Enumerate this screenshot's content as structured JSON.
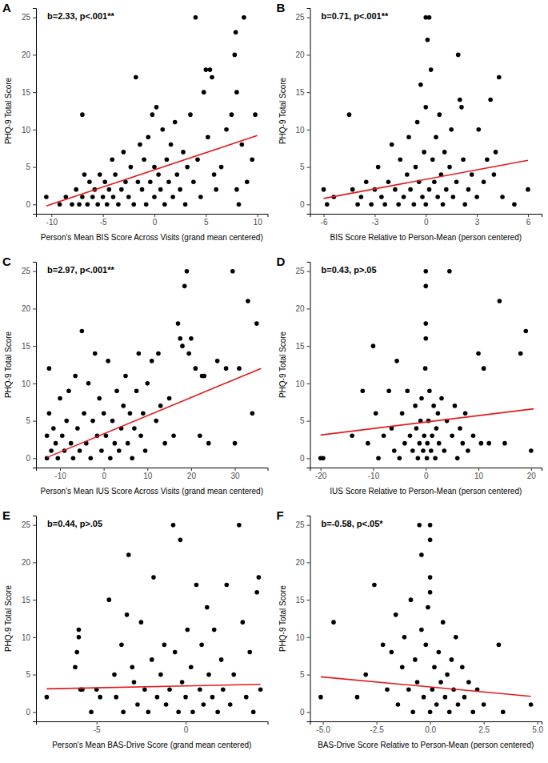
{
  "chart_data": [
    {
      "type": "scatter",
      "title": "A",
      "annotation": "b=2.33, p<.001**",
      "x_label": "Person's Mean BIS Score Across Visits (grand mean centered)",
      "y_label": "PHQ-9 Total Score",
      "xlim": [
        -11.5,
        11
      ],
      "ylim": [
        -1.25,
        26.25
      ],
      "xticks": [
        -10,
        -5,
        0,
        5,
        10
      ],
      "yticks": [
        0,
        5,
        10,
        15,
        20,
        25
      ],
      "series": [
        {
          "type": "scatter",
          "color": "#000000",
          "marker": "circle",
          "x": [
            -10.5,
            -9.2,
            -8.6,
            -8,
            -7.6,
            -7.3,
            -7,
            -7,
            -6.8,
            -6.5,
            -6.3,
            -6,
            -5.8,
            -5.5,
            -5.3,
            -5,
            -4.8,
            -4.6,
            -4.4,
            -4.1,
            -4,
            -3.8,
            -3.5,
            -3.2,
            -3,
            -2.8,
            -2.5,
            -2.3,
            -2,
            -1.8,
            -1.6,
            -1.4,
            -1.2,
            -1,
            -0.8,
            -0.6,
            -0.4,
            -0.2,
            0,
            0,
            0.2,
            0.4,
            0.6,
            0.8,
            1,
            1.2,
            1.4,
            1.6,
            1.8,
            2,
            2.2,
            2.5,
            2.8,
            3,
            3.2,
            3.5,
            3.8,
            4,
            4.2,
            4.5,
            4.8,
            5,
            5.2,
            5.4,
            5.6,
            5.8,
            6,
            6.5,
            7,
            7.5,
            7.8,
            7.9,
            8,
            8,
            8.2,
            8.5,
            8.7,
            9,
            9.5,
            9.8
          ],
          "values": [
            1,
            0,
            1,
            0,
            2,
            0,
            12,
            1,
            4,
            0,
            3,
            1,
            2,
            0,
            4,
            1,
            3,
            0,
            2,
            6,
            1,
            4,
            0,
            2,
            7,
            3,
            1,
            5,
            0,
            17,
            3,
            8,
            2,
            6,
            0,
            9,
            3,
            12,
            5,
            1,
            13,
            4,
            2,
            10,
            0,
            6,
            3,
            8,
            1,
            11,
            4,
            2,
            7,
            0,
            5,
            12,
            3,
            25,
            6,
            1,
            15,
            18,
            9,
            18,
            17,
            4,
            2,
            5,
            10,
            12,
            20,
            23,
            15,
            2,
            0,
            8,
            25,
            3,
            6,
            12
          ]
        },
        {
          "type": "line",
          "color": "#e41a1c",
          "x": [
            -10.5,
            10
          ],
          "values": [
            -0.2,
            9.2
          ]
        }
      ]
    },
    {
      "type": "scatter",
      "title": "B",
      "annotation": "b=0.71, p<.001**",
      "x_label": "BIS Score Relative to Person-Mean (person centered)",
      "y_label": "PHQ-9 Total Score",
      "xlim": [
        -6.8,
        6.8
      ],
      "ylim": [
        -1.25,
        26.25
      ],
      "xticks": [
        -6,
        -3,
        0,
        3,
        6
      ],
      "yticks": [
        0,
        5,
        10,
        15,
        20,
        25
      ],
      "series": [
        {
          "type": "scatter",
          "color": "#000000",
          "marker": "circle",
          "x": [
            -6,
            -5.8,
            -5.4,
            -4.5,
            -4.3,
            -4,
            -3.8,
            -3.5,
            -3.2,
            -3,
            -2.8,
            -2.6,
            -2.4,
            -2.2,
            -2,
            -1.8,
            -1.6,
            -1.5,
            -1.3,
            -1.1,
            -1,
            -0.9,
            -0.7,
            -0.6,
            -0.5,
            -0.4,
            -0.3,
            -0.2,
            -0.1,
            0,
            0,
            0,
            0.1,
            0.2,
            0.2,
            0.3,
            0.4,
            0.5,
            0.6,
            0.7,
            0.8,
            0.9,
            1,
            1.1,
            1.2,
            1.4,
            1.5,
            1.6,
            1.8,
            1.9,
            2,
            2.1,
            2.2,
            2.3,
            2.5,
            2.7,
            3,
            3.1,
            3.4,
            3.6,
            3.8,
            4,
            4.1,
            4.3,
            4.5,
            5.2,
            6
          ],
          "values": [
            2,
            0,
            1,
            12,
            2,
            0,
            1,
            3,
            0,
            2,
            5,
            1,
            0,
            3,
            8,
            2,
            0,
            6,
            1,
            4,
            9,
            2,
            0,
            5,
            11,
            3,
            16,
            1,
            7,
            0,
            13,
            25,
            22,
            25,
            2,
            18,
            6,
            3,
            9,
            1,
            12,
            4,
            0,
            7,
            2,
            5,
            10,
            1,
            3,
            20,
            14,
            13,
            6,
            0,
            2,
            4,
            1,
            10,
            3,
            6,
            14,
            4,
            7,
            17,
            1,
            0,
            2
          ]
        },
        {
          "type": "line",
          "color": "#e41a1c",
          "x": [
            -6,
            6
          ],
          "values": [
            0.8,
            5.9
          ]
        }
      ]
    },
    {
      "type": "scatter",
      "title": "C",
      "annotation": "b=2.97, p<.001**",
      "x_label": "Person's Mean IUS Score Across Visits (grand mean centered)",
      "y_label": "PHQ-9 Total Score",
      "xlim": [
        -15.5,
        37.5
      ],
      "ylim": [
        -1.25,
        26.25
      ],
      "xticks": [
        -10,
        0,
        10,
        20,
        30
      ],
      "yticks": [
        0,
        5,
        10,
        15,
        20,
        25
      ],
      "series": [
        {
          "type": "scatter",
          "color": "#000000",
          "marker": "circle",
          "x": [
            -13,
            -13,
            -12.5,
            -12.5,
            -12,
            -11.5,
            -11,
            -10.5,
            -10,
            -9.5,
            -9,
            -8.5,
            -8,
            -7.5,
            -7,
            -6.5,
            -6,
            -5.5,
            -5,
            -4.5,
            -4,
            -3.5,
            -3,
            -2.5,
            -2,
            -1.5,
            -1,
            -0.5,
            0,
            0.5,
            1,
            1.5,
            2,
            2.5,
            3,
            3.5,
            4,
            4.5,
            5,
            5.5,
            6,
            6.5,
            7,
            7.5,
            8,
            8.5,
            9,
            9.5,
            10,
            11,
            12,
            12.5,
            13,
            14,
            15,
            16,
            17,
            17.5,
            18,
            18.5,
            19,
            19.5,
            20,
            21,
            22,
            22.5,
            23,
            24,
            26,
            28,
            29.5,
            30,
            31,
            33,
            34,
            35
          ],
          "values": [
            0,
            3,
            6,
            12,
            1,
            4,
            2,
            0,
            8,
            3,
            1,
            5,
            9,
            2,
            0,
            11,
            4,
            1,
            17,
            6,
            2,
            10,
            0,
            5,
            14,
            3,
            8,
            1,
            6,
            3,
            13,
            0,
            5,
            2,
            9,
            1,
            4,
            7,
            11,
            2,
            6,
            0,
            4,
            9,
            14,
            3,
            6,
            1,
            10,
            13,
            5,
            14,
            7,
            2,
            8,
            3,
            18,
            16,
            15,
            23,
            25,
            14,
            16,
            12,
            3,
            11,
            11,
            2,
            13,
            12,
            25,
            2,
            12,
            21,
            6,
            18
          ]
        },
        {
          "type": "line",
          "color": "#e41a1c",
          "x": [
            -13,
            36
          ],
          "values": [
            0.1,
            12
          ]
        }
      ]
    },
    {
      "type": "scatter",
      "title": "D",
      "annotation": "b=0.43, p>.05",
      "x_label": "IUS Score Relative to Person-Mean (person centered)",
      "y_label": "PHQ-9 Total Score",
      "xlim": [
        -22,
        22
      ],
      "ylim": [
        -1.25,
        26.25
      ],
      "xticks": [
        -20,
        -10,
        0,
        10,
        20
      ],
      "yticks": [
        0,
        5,
        10,
        15,
        20,
        25
      ],
      "series": [
        {
          "type": "scatter",
          "color": "#000000",
          "marker": "circle",
          "x": [
            -20,
            -19.5,
            -14,
            -12,
            -11,
            -10,
            -9.5,
            -9,
            -8,
            -7,
            -6.5,
            -6,
            -5.5,
            -5,
            -4.5,
            -4,
            -3.5,
            -3,
            -2.5,
            -2,
            -1.8,
            -1.5,
            -1.2,
            -1,
            -0.8,
            -0.5,
            -0.3,
            -0.1,
            0,
            0,
            0,
            0,
            0.2,
            0.3,
            0.5,
            0.7,
            1,
            1.2,
            1.5,
            1.8,
            2,
            2.3,
            2.5,
            3,
            3.5,
            4,
            4.5,
            5,
            5.5,
            6,
            6.5,
            7,
            7.5,
            8,
            9,
            10,
            10.5,
            11,
            12,
            14,
            15,
            18,
            19,
            20
          ],
          "values": [
            0,
            0,
            3,
            9,
            2,
            15,
            6,
            0,
            3,
            9,
            4,
            1,
            13,
            0,
            6,
            2,
            9,
            3,
            1,
            7,
            4,
            0,
            2,
            5,
            8,
            1,
            3,
            12,
            16,
            18,
            23,
            25,
            0,
            2,
            5,
            9,
            1,
            3,
            7,
            0,
            4,
            6,
            2,
            8,
            1,
            5,
            25,
            3,
            7,
            0,
            4,
            2,
            6,
            1,
            3,
            14,
            2,
            12,
            2,
            21,
            2,
            14,
            17,
            1
          ]
        },
        {
          "type": "line",
          "color": "#e41a1c",
          "x": [
            -20,
            20.5
          ],
          "values": [
            3.1,
            6.6
          ]
        }
      ]
    },
    {
      "type": "scatter",
      "title": "E",
      "annotation": "b=0.44, p>.05",
      "x_label": "Person's Mean BAS-Drive Score (grand mean centered)",
      "y_label": "PHQ-9 Total Score",
      "xlim": [
        -8.4,
        4.6
      ],
      "ylim": [
        -1.25,
        26.25
      ],
      "xticks": [
        -5,
        0
      ],
      "yticks": [
        0,
        5,
        10,
        15,
        20,
        25
      ],
      "series": [
        {
          "type": "scatter",
          "color": "#000000",
          "marker": "circle",
          "x": [
            -7.8,
            -6.2,
            -6.1,
            -6,
            -6,
            -5.9,
            -5.8,
            -5.3,
            -5,
            -4.8,
            -4.3,
            -4,
            -3.9,
            -3.6,
            -3.5,
            -3.3,
            -3.2,
            -3,
            -2.9,
            -2.7,
            -2.5,
            -2.3,
            -2.1,
            -1.9,
            -1.8,
            -1.6,
            -1.4,
            -1.2,
            -1.1,
            -0.9,
            -0.7,
            -0.6,
            -0.4,
            -0.3,
            -0.2,
            0,
            0.1,
            0.3,
            0.4,
            0.6,
            0.8,
            0.9,
            1,
            1.2,
            1.3,
            1.5,
            1.6,
            1.8,
            2,
            2.1,
            2.3,
            2.5,
            2.7,
            3,
            3.2,
            3.4,
            3.6,
            3.8,
            4,
            4.1,
            4.2
          ],
          "values": [
            2,
            6,
            8,
            10,
            11,
            3,
            3,
            0,
            3,
            2,
            15,
            5,
            2,
            9,
            0,
            13,
            21,
            6,
            4,
            1,
            12,
            3,
            0,
            7,
            18,
            2,
            5,
            9,
            1,
            3,
            25,
            8,
            0,
            23,
            4,
            2,
            11,
            6,
            0,
            17,
            3,
            9,
            1,
            14,
            5,
            2,
            11,
            0,
            7,
            3,
            17,
            1,
            5,
            25,
            12,
            2,
            8,
            0,
            16,
            18,
            3
          ]
        },
        {
          "type": "line",
          "color": "#e41a1c",
          "x": [
            -7.8,
            4.2
          ],
          "values": [
            3.1,
            3.7
          ]
        }
      ]
    },
    {
      "type": "scatter",
      "title": "F",
      "annotation": "b=-0.58, p<.05*",
      "x_label": "BAS-Drive Score Relative to Person-Mean (person centered)",
      "y_label": "PHQ-9 Total Score",
      "xlim": [
        -5.6,
        5.2
      ],
      "ylim": [
        -1.25,
        26.25
      ],
      "xticks": [
        {
          "value": -5,
          "label": "-5.0"
        },
        {
          "value": -2.5,
          "label": "-2.5"
        },
        {
          "value": 0,
          "label": "0.0"
        },
        {
          "value": 2.5,
          "label": "2.5"
        },
        {
          "value": 5,
          "label": "5.0"
        }
      ],
      "yticks": [
        0,
        5,
        10,
        15,
        20,
        25
      ],
      "series": [
        {
          "type": "scatter",
          "color": "#000000",
          "marker": "circle",
          "x": [
            -5.1,
            -4.5,
            -3.4,
            -3,
            -2.6,
            -2.2,
            -2,
            -1.8,
            -1.6,
            -1.5,
            -1.3,
            -1.2,
            -1,
            -0.9,
            -0.8,
            -0.7,
            -0.6,
            -0.5,
            -0.4,
            -0.4,
            -0.3,
            -0.2,
            -0.1,
            0,
            0,
            0,
            0,
            0,
            0.1,
            0.2,
            0.3,
            0.4,
            0.5,
            0.6,
            0.7,
            0.8,
            0.9,
            1,
            1.1,
            1.2,
            1.3,
            1.5,
            1.6,
            1.8,
            2,
            2.2,
            2.5,
            3.2,
            3.4,
            4.7
          ],
          "values": [
            2,
            12,
            2,
            5,
            17,
            9,
            3,
            8,
            13,
            1,
            6,
            10,
            3,
            15,
            0,
            7,
            4,
            25,
            21,
            11,
            2,
            9,
            14,
            0,
            16,
            18,
            23,
            25,
            3,
            6,
            1,
            8,
            4,
            12,
            2,
            5,
            0,
            7,
            3,
            10,
            1,
            6,
            2,
            4,
            0,
            3,
            1,
            9,
            0,
            1
          ]
        },
        {
          "type": "line",
          "color": "#e41a1c",
          "x": [
            -5.1,
            4.7
          ],
          "values": [
            4.7,
            2.1
          ]
        }
      ]
    }
  ]
}
